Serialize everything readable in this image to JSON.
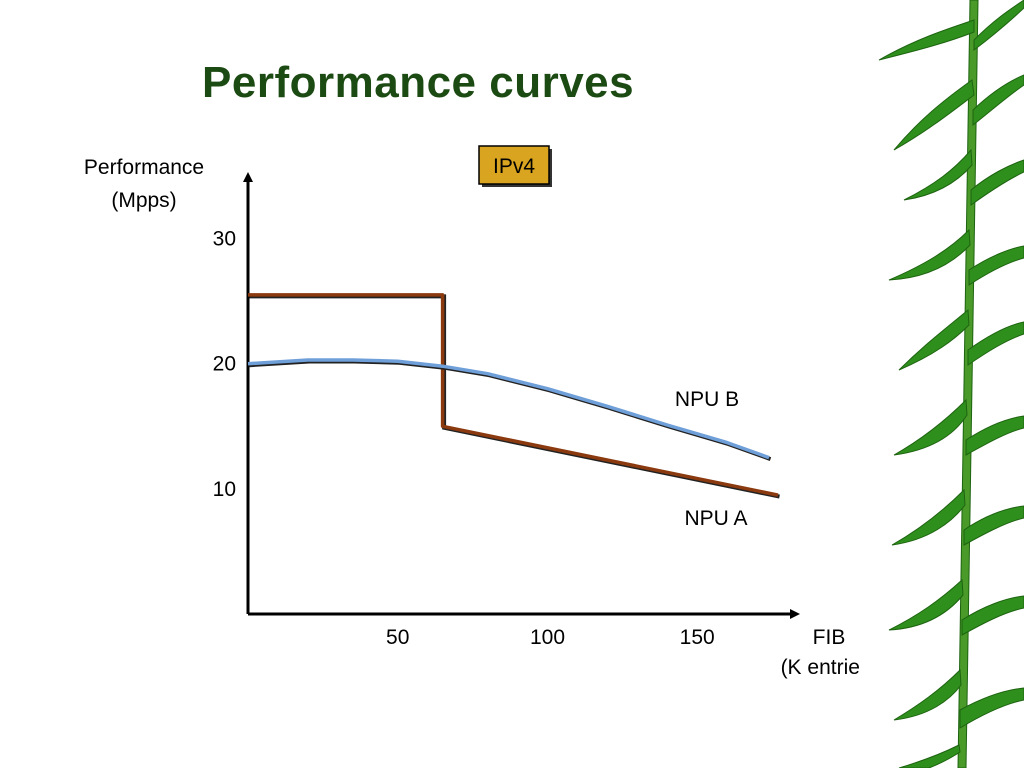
{
  "slide": {
    "title": "Performance curves"
  },
  "colors": {
    "title": "#1b4a12",
    "npu_a": "#8b3a0f",
    "npu_b": "#6f9fd8",
    "badge": "#d9a520",
    "leaf": "#2f8f1c"
  },
  "chart_data": {
    "type": "line",
    "badge": "IPv4",
    "ylabel": [
      "Performance",
      "(Mpps)"
    ],
    "xlabel": [
      "FIB",
      "(K entries)"
    ],
    "xlim": [
      0,
      183
    ],
    "ylim": [
      0,
      35
    ],
    "yticks": [
      10,
      20,
      30
    ],
    "xticks": [
      50,
      100,
      150
    ],
    "grid": false,
    "series": [
      {
        "name": "NPU A",
        "color": "#8b3a0f",
        "x": [
          0,
          65,
          65,
          177
        ],
        "y": [
          25.5,
          25.5,
          15,
          9.5
        ]
      },
      {
        "name": "NPU B",
        "color": "#6f9fd8",
        "x": [
          0,
          20,
          35,
          50,
          65,
          80,
          100,
          120,
          140,
          160,
          174
        ],
        "y": [
          20,
          20.3,
          20.3,
          20.2,
          19.8,
          19.2,
          18,
          16.6,
          15.1,
          13.7,
          12.5
        ]
      }
    ]
  }
}
